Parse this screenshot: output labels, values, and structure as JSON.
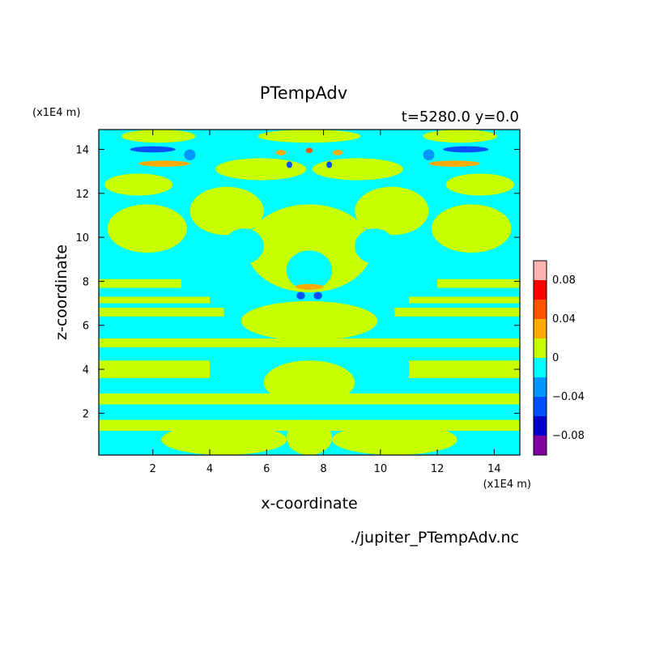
{
  "chart_data": {
    "type": "heatmap",
    "title": "PTempAdv",
    "subtitle": "t=5280.0 y=0.0",
    "xlabel": "x-coordinate",
    "ylabel": "z-coordinate",
    "x_unit": "(x1E4 m)",
    "y_unit": "(x1E4 m)",
    "footer": "./jupiter_PTempAdv.nc",
    "xlim": [
      0.1,
      14.9
    ],
    "ylim": [
      0.1,
      14.9
    ],
    "x_ticks": [
      2,
      4,
      6,
      8,
      10,
      12,
      14
    ],
    "y_ticks": [
      2,
      4,
      6,
      8,
      10,
      12,
      14
    ],
    "x_tick_labels": [
      "2",
      "4",
      "6",
      "8",
      "10",
      "12",
      "14"
    ],
    "y_tick_labels": [
      "2",
      "4",
      "6",
      "8",
      "10",
      "12",
      "14"
    ],
    "colorbar": {
      "levels": [
        -0.1,
        -0.08,
        -0.06,
        -0.04,
        -0.02,
        0,
        0.02,
        0.04,
        0.06,
        0.08,
        0.1
      ],
      "colors": [
        "#8000a0",
        "#0000c8",
        "#0050ff",
        "#0096ff",
        "#00ffff",
        "#c8ff00",
        "#ffaa00",
        "#ff5500",
        "#ff0000",
        "#ffb4b4"
      ],
      "tick_values": [
        0.08,
        0.04,
        0,
        -0.04,
        -0.08
      ],
      "tick_labels": [
        "0.08",
        "0.04",
        "0",
        "−0.04",
        "−0.08"
      ]
    },
    "background_color": "#00ffff",
    "field_regions": [
      {
        "cls": 0.01,
        "shape": "band",
        "zmin": 1.2,
        "zmax": 1.7,
        "xmin": 0.1,
        "xmax": 14.9
      },
      {
        "cls": 0.01,
        "shape": "band",
        "zmin": 2.4,
        "zmax": 2.9,
        "xmin": 0.1,
        "xmax": 14.9
      },
      {
        "cls": 0.01,
        "shape": "band",
        "zmin": 3.6,
        "zmax": 4.4,
        "xmin": 0.1,
        "xmax": 4.0
      },
      {
        "cls": 0.01,
        "shape": "band",
        "zmin": 3.6,
        "zmax": 4.4,
        "xmin": 11.0,
        "xmax": 14.9
      },
      {
        "cls": 0.01,
        "shape": "band",
        "zmin": 5.0,
        "zmax": 5.4,
        "xmin": 0.1,
        "xmax": 14.9
      },
      {
        "cls": 0.01,
        "shape": "band",
        "zmin": 6.4,
        "zmax": 6.8,
        "xmin": 0.1,
        "xmax": 4.5
      },
      {
        "cls": 0.01,
        "shape": "band",
        "zmin": 6.4,
        "zmax": 6.8,
        "xmin": 10.5,
        "xmax": 14.9
      },
      {
        "cls": 0.01,
        "shape": "band",
        "zmin": 7.0,
        "zmax": 7.3,
        "xmin": 0.1,
        "xmax": 4.0
      },
      {
        "cls": 0.01,
        "shape": "band",
        "zmin": 7.0,
        "zmax": 7.3,
        "xmin": 11.0,
        "xmax": 14.9
      },
      {
        "cls": 0.01,
        "shape": "band",
        "zmin": 7.7,
        "zmax": 8.1,
        "xmin": 0.1,
        "xmax": 3.0
      },
      {
        "cls": 0.01,
        "shape": "band",
        "zmin": 7.7,
        "zmax": 8.1,
        "xmin": 12.0,
        "xmax": 14.9
      },
      {
        "cls": 0.01,
        "shape": "ellipse",
        "cx": 7.5,
        "cy": 9.5,
        "rx": 2.2,
        "ry": 2.0
      },
      {
        "cls": 0.01,
        "shape": "ellipse",
        "cx": 7.5,
        "cy": 6.2,
        "rx": 2.4,
        "ry": 0.9
      },
      {
        "cls": 0.01,
        "shape": "ellipse",
        "cx": 7.5,
        "cy": 3.4,
        "rx": 1.6,
        "ry": 1.0
      },
      {
        "cls": 0.01,
        "shape": "ellipse",
        "cx": 4.6,
        "cy": 11.2,
        "rx": 1.3,
        "ry": 1.1
      },
      {
        "cls": 0.01,
        "shape": "ellipse",
        "cx": 10.4,
        "cy": 11.2,
        "rx": 1.3,
        "ry": 1.1
      },
      {
        "cls": 0.01,
        "shape": "ellipse",
        "cx": 1.8,
        "cy": 10.4,
        "rx": 1.4,
        "ry": 1.1
      },
      {
        "cls": 0.01,
        "shape": "ellipse",
        "cx": 13.2,
        "cy": 10.4,
        "rx": 1.4,
        "ry": 1.1
      },
      {
        "cls": 0.01,
        "shape": "ellipse",
        "cx": 5.8,
        "cy": 13.1,
        "rx": 1.6,
        "ry": 0.5
      },
      {
        "cls": 0.01,
        "shape": "ellipse",
        "cx": 9.2,
        "cy": 13.1,
        "rx": 1.6,
        "ry": 0.5
      },
      {
        "cls": 0.01,
        "shape": "ellipse",
        "cx": 1.5,
        "cy": 12.4,
        "rx": 1.2,
        "ry": 0.5
      },
      {
        "cls": 0.01,
        "shape": "ellipse",
        "cx": 13.5,
        "cy": 12.4,
        "rx": 1.2,
        "ry": 0.5
      },
      {
        "cls": 0.01,
        "shape": "ellipse",
        "cx": 4.5,
        "cy": 0.8,
        "rx": 2.2,
        "ry": 0.7
      },
      {
        "cls": 0.01,
        "shape": "ellipse",
        "cx": 10.5,
        "cy": 0.8,
        "rx": 2.2,
        "ry": 0.7
      },
      {
        "cls": 0.01,
        "shape": "ellipse",
        "cx": 7.5,
        "cy": 0.9,
        "rx": 0.8,
        "ry": 0.8
      },
      {
        "cls": 0.01,
        "shape": "ellipse",
        "cx": 7.5,
        "cy": 14.6,
        "rx": 1.8,
        "ry": 0.3
      },
      {
        "cls": 0.01,
        "shape": "ellipse",
        "cx": 2.2,
        "cy": 14.6,
        "rx": 1.3,
        "ry": 0.3
      },
      {
        "cls": 0.01,
        "shape": "ellipse",
        "cx": 12.8,
        "cy": 14.6,
        "rx": 1.3,
        "ry": 0.3
      },
      {
        "cls": -0.01,
        "shape": "ellipse",
        "cx": 7.5,
        "cy": 8.5,
        "rx": 0.8,
        "ry": 0.9
      },
      {
        "cls": -0.01,
        "shape": "ellipse",
        "cx": 5.2,
        "cy": 9.6,
        "rx": 0.7,
        "ry": 0.8
      },
      {
        "cls": -0.01,
        "shape": "ellipse",
        "cx": 9.8,
        "cy": 9.6,
        "rx": 0.7,
        "ry": 0.8
      },
      {
        "cls": -0.05,
        "shape": "ellipse",
        "cx": 2.0,
        "cy": 14.0,
        "rx": 0.8,
        "ry": 0.14
      },
      {
        "cls": -0.05,
        "shape": "ellipse",
        "cx": 13.0,
        "cy": 14.0,
        "rx": 0.8,
        "ry": 0.14
      },
      {
        "cls": 0.03,
        "shape": "ellipse",
        "cx": 2.4,
        "cy": 13.35,
        "rx": 0.9,
        "ry": 0.14
      },
      {
        "cls": 0.03,
        "shape": "ellipse",
        "cx": 12.6,
        "cy": 13.35,
        "rx": 0.9,
        "ry": 0.14
      },
      {
        "cls": -0.03,
        "shape": "ellipse",
        "cx": 3.3,
        "cy": 13.75,
        "rx": 0.2,
        "ry": 0.25
      },
      {
        "cls": -0.03,
        "shape": "ellipse",
        "cx": 11.7,
        "cy": 13.75,
        "rx": 0.2,
        "ry": 0.25
      },
      {
        "cls": 0.03,
        "shape": "ellipse",
        "cx": 6.5,
        "cy": 13.85,
        "rx": 0.18,
        "ry": 0.12
      },
      {
        "cls": 0.03,
        "shape": "ellipse",
        "cx": 8.5,
        "cy": 13.85,
        "rx": 0.18,
        "ry": 0.12
      },
      {
        "cls": 0.05,
        "shape": "ellipse",
        "cx": 7.5,
        "cy": 13.95,
        "rx": 0.12,
        "ry": 0.12
      },
      {
        "cls": -0.05,
        "shape": "ellipse",
        "cx": 6.8,
        "cy": 13.3,
        "rx": 0.1,
        "ry": 0.15
      },
      {
        "cls": -0.05,
        "shape": "ellipse",
        "cx": 8.2,
        "cy": 13.3,
        "rx": 0.1,
        "ry": 0.15
      },
      {
        "cls": 0.03,
        "shape": "ellipse",
        "cx": 7.5,
        "cy": 7.75,
        "rx": 0.5,
        "ry": 0.13
      },
      {
        "cls": -0.05,
        "shape": "ellipse",
        "cx": 7.2,
        "cy": 7.35,
        "rx": 0.15,
        "ry": 0.17
      },
      {
        "cls": -0.05,
        "shape": "ellipse",
        "cx": 7.8,
        "cy": 7.35,
        "rx": 0.15,
        "ry": 0.17
      }
    ]
  }
}
